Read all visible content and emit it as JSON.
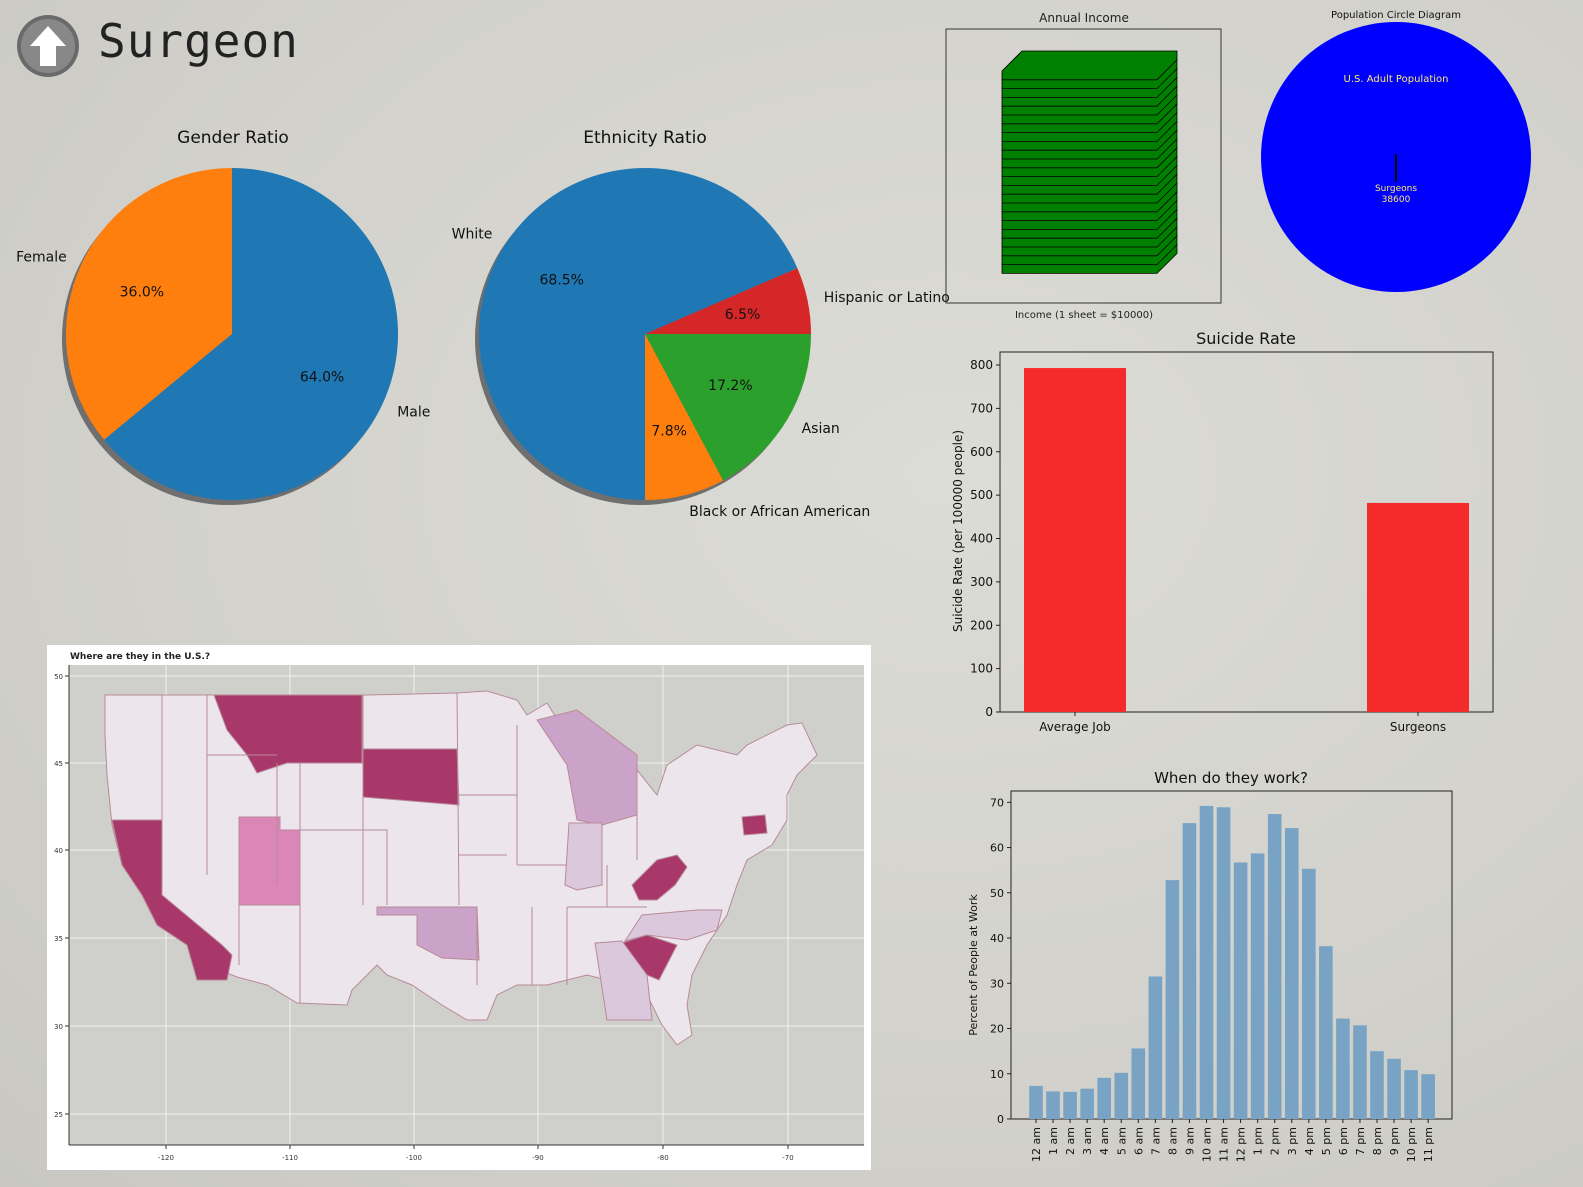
{
  "header": {
    "title": "Surgeon",
    "icon": "up-arrow-icon"
  },
  "colors": {
    "blue": "#1f77b4",
    "orange": "#ff7f0e",
    "green": "#2ca02c",
    "red": "#d62728",
    "income_green": "#008000",
    "circle_blue": "#0000ff",
    "suicide_red": "#f52a2a",
    "work_blue": "#78a3c4",
    "state_dark": "#a8386a",
    "state_mid": "#dc86b8",
    "state_light": "#cca3c8",
    "state_faint": "#dcc8dc",
    "state_base": "#ece6ec"
  },
  "chart_data": [
    {
      "id": "gender",
      "type": "pie",
      "title": "Gender Ratio",
      "labels": [
        "Female",
        "Male"
      ],
      "values": [
        36.0,
        64.0
      ],
      "pct_labels": [
        "36.0%",
        "64.0%"
      ]
    },
    {
      "id": "ethnicity",
      "type": "pie",
      "title": "Ethnicity Ratio",
      "labels": [
        "Hispanic or Latino",
        "White",
        "Black or African American",
        "Asian"
      ],
      "values": [
        6.5,
        68.5,
        7.8,
        17.2
      ],
      "pct_labels": [
        "6.5%",
        "68.5%",
        "7.8%",
        "17.2%"
      ]
    },
    {
      "id": "income",
      "type": "bar",
      "title": "Annual Income",
      "xlabel": "Income (1 sheet = $10000)",
      "sheets": 23
    },
    {
      "id": "population",
      "type": "other",
      "title": "Population Circle Diagram",
      "outer_label": "U.S. Adult Population",
      "inner_label": "Surgeons",
      "inner_value": "38600"
    },
    {
      "id": "suicide",
      "type": "bar",
      "title": "Suicide Rate",
      "ylabel": "Suicide Rate (per 100000 people)",
      "categories": [
        "Average Job",
        "Surgeons"
      ],
      "values": [
        793,
        482
      ],
      "ylim": [
        0,
        830
      ],
      "yticks": [
        "0",
        "100",
        "200",
        "300",
        "400",
        "500",
        "600",
        "700",
        "800"
      ]
    },
    {
      "id": "work",
      "type": "bar",
      "title": "When do they work?",
      "ylabel": "Percent of People at Work",
      "categories": [
        "12 am",
        "1 am",
        "2 am",
        "3 am",
        "4 am",
        "5 am",
        "6 am",
        "7 am",
        "8 am",
        "9 am",
        "10 am",
        "11 am",
        "12 pm",
        "1 pm",
        "2 pm",
        "3 pm",
        "4 pm",
        "5 pm",
        "6 pm",
        "7 pm",
        "8 pm",
        "9 pm",
        "10 pm",
        "11 pm"
      ],
      "values": [
        7.3,
        6.1,
        6.0,
        6.7,
        9.1,
        10.2,
        15.6,
        31.5,
        52.8,
        65.4,
        69.2,
        68.9,
        56.7,
        58.7,
        67.4,
        64.3,
        55.3,
        38.2,
        22.2,
        20.7,
        15.0,
        13.3,
        10.8,
        9.9
      ],
      "ylim": [
        0,
        72.5
      ],
      "yticks": [
        "0",
        "10",
        "20",
        "30",
        "40",
        "50",
        "60",
        "70"
      ]
    },
    {
      "id": "map",
      "type": "heatmap",
      "title": "Where are they in the U.S.?",
      "yticks": [
        "50",
        "45",
        "40",
        "35",
        "30",
        "25"
      ],
      "xticks": [
        "-120",
        "-110",
        "-100",
        "-90",
        "-80",
        "-70"
      ]
    }
  ]
}
